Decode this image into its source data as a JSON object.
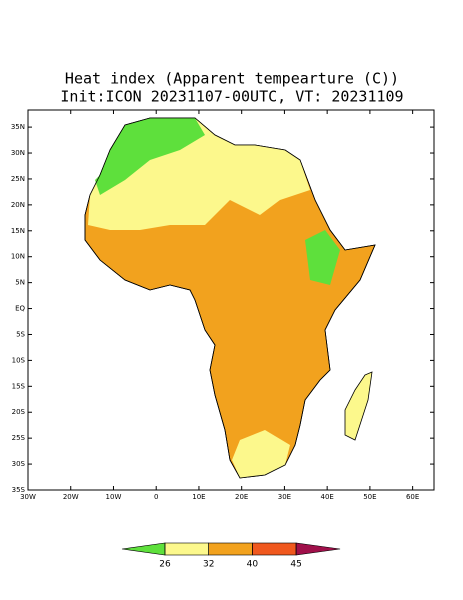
{
  "title": "Heat index (Apparent tempearture (C))",
  "subtitle": "Init:ICON 20231107-00UTC, VT: 20231109",
  "map": {
    "latlim": [
      -35,
      38.3
    ],
    "lonlim": [
      -30,
      65
    ],
    "lat_ticks": [
      {
        "value": 35,
        "label": "35N"
      },
      {
        "value": 30,
        "label": "30N"
      },
      {
        "value": 25,
        "label": "25N"
      },
      {
        "value": 20,
        "label": "20N"
      },
      {
        "value": 15,
        "label": "15N"
      },
      {
        "value": 10,
        "label": "10N"
      },
      {
        "value": 5,
        "label": "5N"
      },
      {
        "value": 0,
        "label": "EQ"
      },
      {
        "value": -5,
        "label": "5S"
      },
      {
        "value": -10,
        "label": "10S"
      },
      {
        "value": -15,
        "label": "15S"
      },
      {
        "value": -20,
        "label": "20S"
      },
      {
        "value": -25,
        "label": "25S"
      },
      {
        "value": -30,
        "label": "30S"
      },
      {
        "value": -35,
        "label": "35S"
      }
    ],
    "lon_ticks": [
      {
        "value": -30,
        "label": "30W"
      },
      {
        "value": -20,
        "label": "20W"
      },
      {
        "value": -10,
        "label": "10W"
      },
      0,
      {
        "value": 10,
        "label": "10E"
      },
      {
        "value": 20,
        "label": "20E"
      },
      {
        "value": 30,
        "label": "30E"
      },
      {
        "value": 40,
        "label": "40E"
      },
      {
        "value": 50,
        "label": "50E"
      },
      {
        "value": 60,
        "label": "60E"
      }
    ]
  },
  "colorbar": {
    "levels": [
      26,
      32,
      40,
      45
    ],
    "colors": [
      "#5ee03c",
      "#fcf88c",
      "#f2a21e",
      "#f0581e",
      "#a0104a"
    ]
  }
}
